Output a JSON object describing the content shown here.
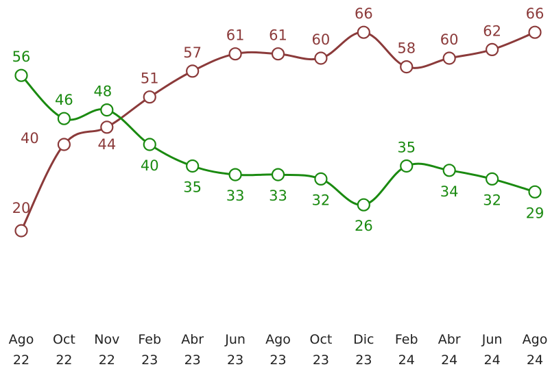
{
  "chart_data": {
    "type": "line",
    "title": "",
    "xlabel": "",
    "ylabel": "",
    "categories": [
      [
        "Ago",
        "22"
      ],
      [
        "Oct",
        "22"
      ],
      [
        "Nov",
        "22"
      ],
      [
        "Feb",
        "23"
      ],
      [
        "Abr",
        "23"
      ],
      [
        "Jun",
        "23"
      ],
      [
        "Ago",
        "23"
      ],
      [
        "Oct",
        "23"
      ],
      [
        "Dic",
        "23"
      ],
      [
        "Feb",
        "24"
      ],
      [
        "Abr",
        "24"
      ],
      [
        "Jun",
        "24"
      ],
      [
        "Ago",
        "24"
      ]
    ],
    "ylim": [
      0,
      100
    ],
    "grid": false,
    "legend": "none",
    "series": [
      {
        "values": [
          20,
          40,
          44,
          51,
          57,
          61,
          61,
          60,
          66,
          58,
          60,
          62,
          66
        ],
        "color": "#8b3a3a",
        "marker_fill": "#ffffff"
      },
      {
        "values": [
          56,
          46,
          48,
          40,
          35,
          33,
          33,
          32,
          26,
          35,
          34,
          32,
          29
        ],
        "color": "#1a8a10",
        "marker_fill": "#ffffff"
      }
    ]
  }
}
